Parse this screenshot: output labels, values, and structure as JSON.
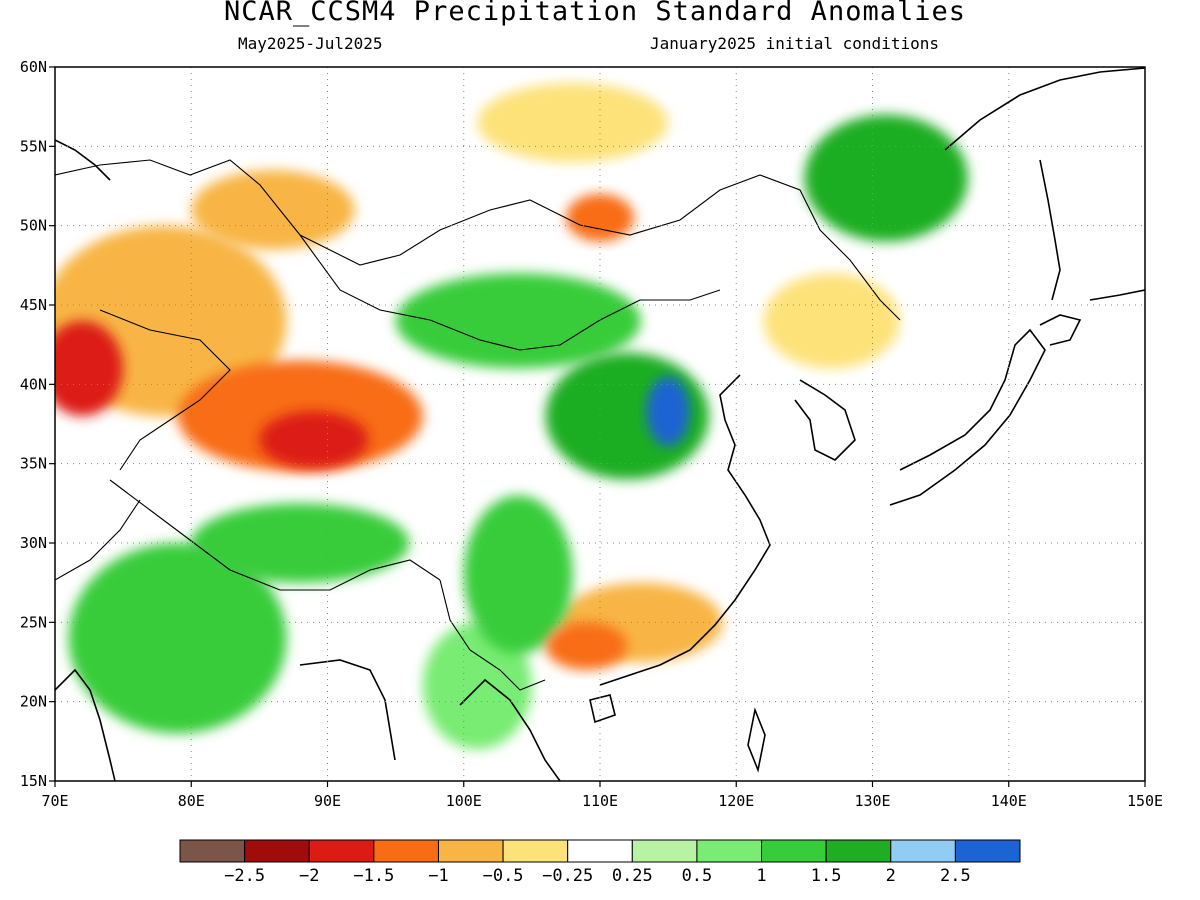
{
  "title": "NCAR_CCSM4 Precipitation Standard Anomalies",
  "subtitle_left": "May2025-Jul2025",
  "subtitle_right": "January2025 initial conditions",
  "map": {
    "lon_range": [
      70,
      150
    ],
    "lat_range": [
      15,
      60
    ],
    "x_ticks": [
      "70E",
      "80E",
      "90E",
      "100E",
      "110E",
      "120E",
      "130E",
      "140E",
      "150E"
    ],
    "y_ticks": [
      "15N",
      "20N",
      "25N",
      "30N",
      "35N",
      "40N",
      "45N",
      "50N",
      "55N",
      "60N"
    ],
    "grid": "dotted"
  },
  "colorbar": {
    "colors": [
      "#7a5548",
      "#a00c0c",
      "#dc1c14",
      "#f86d14",
      "#f8b545",
      "#fde27a",
      "#ffffff",
      "#b8f3a4",
      "#78ec73",
      "#37cc3a",
      "#1fae23",
      "#90ccf3",
      "#1c64d3"
    ],
    "labels": [
      "-2.5",
      "-2",
      "-1.5",
      "-1",
      "-0.5",
      "-0.25",
      "0.25",
      "0.5",
      "1",
      "1.5",
      "2",
      "2.5"
    ]
  },
  "regions": [
    {
      "name": "anomaly-west-central-asia",
      "lon": 78,
      "lat": 44,
      "rx": 9,
      "ry": 6,
      "level": -1
    },
    {
      "name": "anomaly-tarim-basin",
      "lon": 88,
      "lat": 38,
      "rx": 9,
      "ry": 3.5,
      "level": -1.5
    },
    {
      "name": "anomaly-tarim-core",
      "lon": 89,
      "lat": 36.5,
      "rx": 4,
      "ry": 1.8,
      "level": -2
    },
    {
      "name": "anomaly-kazakh-west",
      "lon": 72,
      "lat": 41,
      "rx": 3,
      "ry": 3,
      "level": -2
    },
    {
      "name": "anomaly-altai",
      "lon": 86,
      "lat": 51,
      "rx": 6,
      "ry": 2.5,
      "level": -1
    },
    {
      "name": "anomaly-north-mongolia",
      "lon": 108,
      "lat": 56.5,
      "rx": 7,
      "ry": 2.5,
      "level": -0.5
    },
    {
      "name": "anomaly-baikal-south",
      "lon": 110,
      "lat": 50.5,
      "rx": 2.5,
      "ry": 1.5,
      "level": -1.5
    },
    {
      "name": "anomaly-manchuria",
      "lon": 127,
      "lat": 44,
      "rx": 5,
      "ry": 3,
      "level": -0.5
    },
    {
      "name": "anomaly-south-china",
      "lon": 113,
      "lat": 25,
      "rx": 6,
      "ry": 2.5,
      "level": -1
    },
    {
      "name": "anomaly-guangxi",
      "lon": 109,
      "lat": 23.5,
      "rx": 3,
      "ry": 1.5,
      "level": -1.5
    },
    {
      "name": "anomaly-mongolia-wet",
      "lon": 104,
      "lat": 44,
      "rx": 9,
      "ry": 3,
      "level": 1
    },
    {
      "name": "anomaly-north-china-wet",
      "lon": 112,
      "lat": 38,
      "rx": 6,
      "ry": 4,
      "level": 1.5
    },
    {
      "name": "anomaly-shanxi-peak",
      "lon": 115,
      "lat": 38.3,
      "rx": 1.6,
      "ry": 2.2,
      "level": 2.5
    },
    {
      "name": "anomaly-sichuan-wet",
      "lon": 104,
      "lat": 28,
      "rx": 4,
      "ry": 5,
      "level": 1
    },
    {
      "name": "anomaly-tibet-wet",
      "lon": 88,
      "lat": 30,
      "rx": 8,
      "ry": 2.5,
      "level": 1
    },
    {
      "name": "anomaly-india-wet",
      "lon": 79,
      "lat": 24,
      "rx": 8,
      "ry": 6,
      "level": 1
    },
    {
      "name": "anomaly-indochina-wet",
      "lon": 101,
      "lat": 21,
      "rx": 4,
      "ry": 4,
      "level": 0.5
    },
    {
      "name": "anomaly-amur-wet",
      "lon": 131,
      "lat": 53,
      "rx": 6,
      "ry": 4,
      "level": 1.5
    }
  ]
}
